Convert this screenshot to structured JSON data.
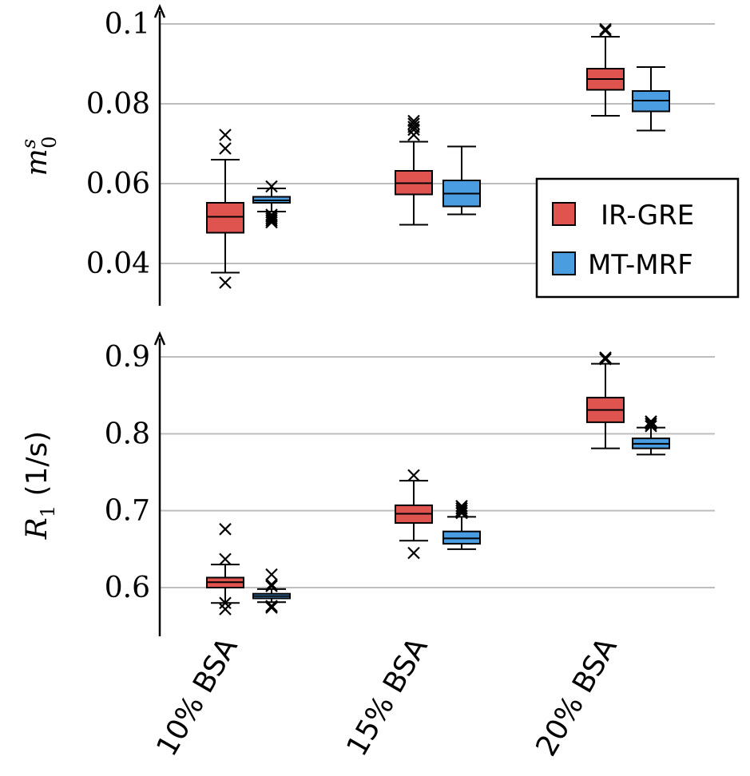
{
  "chart_data": [
    {
      "type": "box",
      "ylabel": "m_0^s",
      "ylabel_parts": {
        "base": "m",
        "sup": "s",
        "sub": "0"
      },
      "ylim": [
        0.028,
        0.103
      ],
      "yticks": [
        0.04,
        0.06,
        0.08,
        0.1
      ],
      "ytick_labels": [
        "0.04",
        "0.06",
        "0.08",
        "0.1"
      ],
      "grid": true,
      "legend_position": "right",
      "series": [
        {
          "name": "IR-GRE",
          "color": "#e05450",
          "boxes": [
            {
              "category": "10% BSA",
              "whisker_low": 0.0377,
              "q1": 0.0477,
              "median": 0.0517,
              "q3": 0.0552,
              "whisker_high": 0.066,
              "outliers": [
                0.0352,
                0.0688,
                0.0722
              ]
            },
            {
              "category": "15% BSA",
              "whisker_low": 0.0497,
              "q1": 0.0573,
              "median": 0.0601,
              "q3": 0.0632,
              "whisker_high": 0.0705,
              "outliers": [
                0.0722,
                0.0735,
                0.0742,
                0.075,
                0.0757
              ]
            },
            {
              "category": "20% BSA",
              "whisker_low": 0.077,
              "q1": 0.0835,
              "median": 0.0862,
              "q3": 0.0888,
              "whisker_high": 0.0968,
              "outliers": [
                0.0983,
                0.0987
              ]
            }
          ]
        },
        {
          "name": "MT-MRF",
          "color": "#4a9de0",
          "boxes": [
            {
              "category": "10% BSA",
              "whisker_low": 0.053,
              "q1": 0.0552,
              "median": 0.0558,
              "q3": 0.0567,
              "whisker_high": 0.0588,
              "outliers": [
                0.0503,
                0.0508,
                0.0513,
                0.0518,
                0.0522,
                0.0593
              ]
            },
            {
              "category": "15% BSA",
              "whisker_low": 0.0523,
              "q1": 0.0543,
              "median": 0.0575,
              "q3": 0.0608,
              "whisker_high": 0.0693,
              "outliers": []
            },
            {
              "category": "20% BSA",
              "whisker_low": 0.0733,
              "q1": 0.0781,
              "median": 0.0808,
              "q3": 0.0832,
              "whisker_high": 0.0892,
              "outliers": []
            }
          ]
        }
      ]
    },
    {
      "type": "box",
      "ylabel": "R_1 (1/s)",
      "ylabel_parts": {
        "base": "R",
        "sub": "1",
        "rest": " (1/s)"
      },
      "ylim": [
        0.535,
        0.93
      ],
      "yticks": [
        0.6,
        0.7,
        0.8,
        0.9
      ],
      "ytick_labels": [
        "0.6",
        "0.7",
        "0.8",
        "0.9"
      ],
      "grid": true,
      "categories": [
        "10% BSA",
        "15% BSA",
        "20% BSA"
      ],
      "series": [
        {
          "name": "IR-GRE",
          "color": "#e05450",
          "boxes": [
            {
              "category": "10% BSA",
              "whisker_low": 0.58,
              "q1": 0.6,
              "median": 0.607,
              "q3": 0.613,
              "whisker_high": 0.63,
              "outliers": [
                0.572,
                0.58,
                0.637,
                0.676
              ]
            },
            {
              "category": "15% BSA",
              "whisker_low": 0.661,
              "q1": 0.684,
              "median": 0.696,
              "q3": 0.707,
              "whisker_high": 0.739,
              "outliers": [
                0.645,
                0.746
              ]
            },
            {
              "category": "20% BSA",
              "whisker_low": 0.781,
              "q1": 0.815,
              "median": 0.831,
              "q3": 0.847,
              "whisker_high": 0.891,
              "outliers": [
                0.897,
                0.899
              ]
            }
          ]
        },
        {
          "name": "MT-MRF",
          "color": "#4a9de0",
          "boxes": [
            {
              "category": "10% BSA",
              "whisker_low": 0.581,
              "q1": 0.586,
              "median": 0.589,
              "q3": 0.592,
              "whisker_high": 0.598,
              "outliers": [
                0.574,
                0.576,
                0.602,
                0.604,
                0.617
              ]
            },
            {
              "category": "15% BSA",
              "whisker_low": 0.65,
              "q1": 0.657,
              "median": 0.664,
              "q3": 0.673,
              "whisker_high": 0.692,
              "outliers": [
                0.697,
                0.7,
                0.703,
                0.706
              ]
            },
            {
              "category": "20% BSA",
              "whisker_low": 0.773,
              "q1": 0.781,
              "median": 0.787,
              "q3": 0.794,
              "whisker_high": 0.808,
              "outliers": [
                0.81,
                0.813,
                0.816
              ]
            }
          ]
        }
      ]
    }
  ],
  "legend": {
    "entries": [
      {
        "label": "IR-GRE",
        "color": "#e05450"
      },
      {
        "label": "MT-MRF",
        "color": "#4a9de0"
      }
    ]
  },
  "categories": [
    "10% BSA",
    "15% BSA",
    "20% BSA"
  ]
}
